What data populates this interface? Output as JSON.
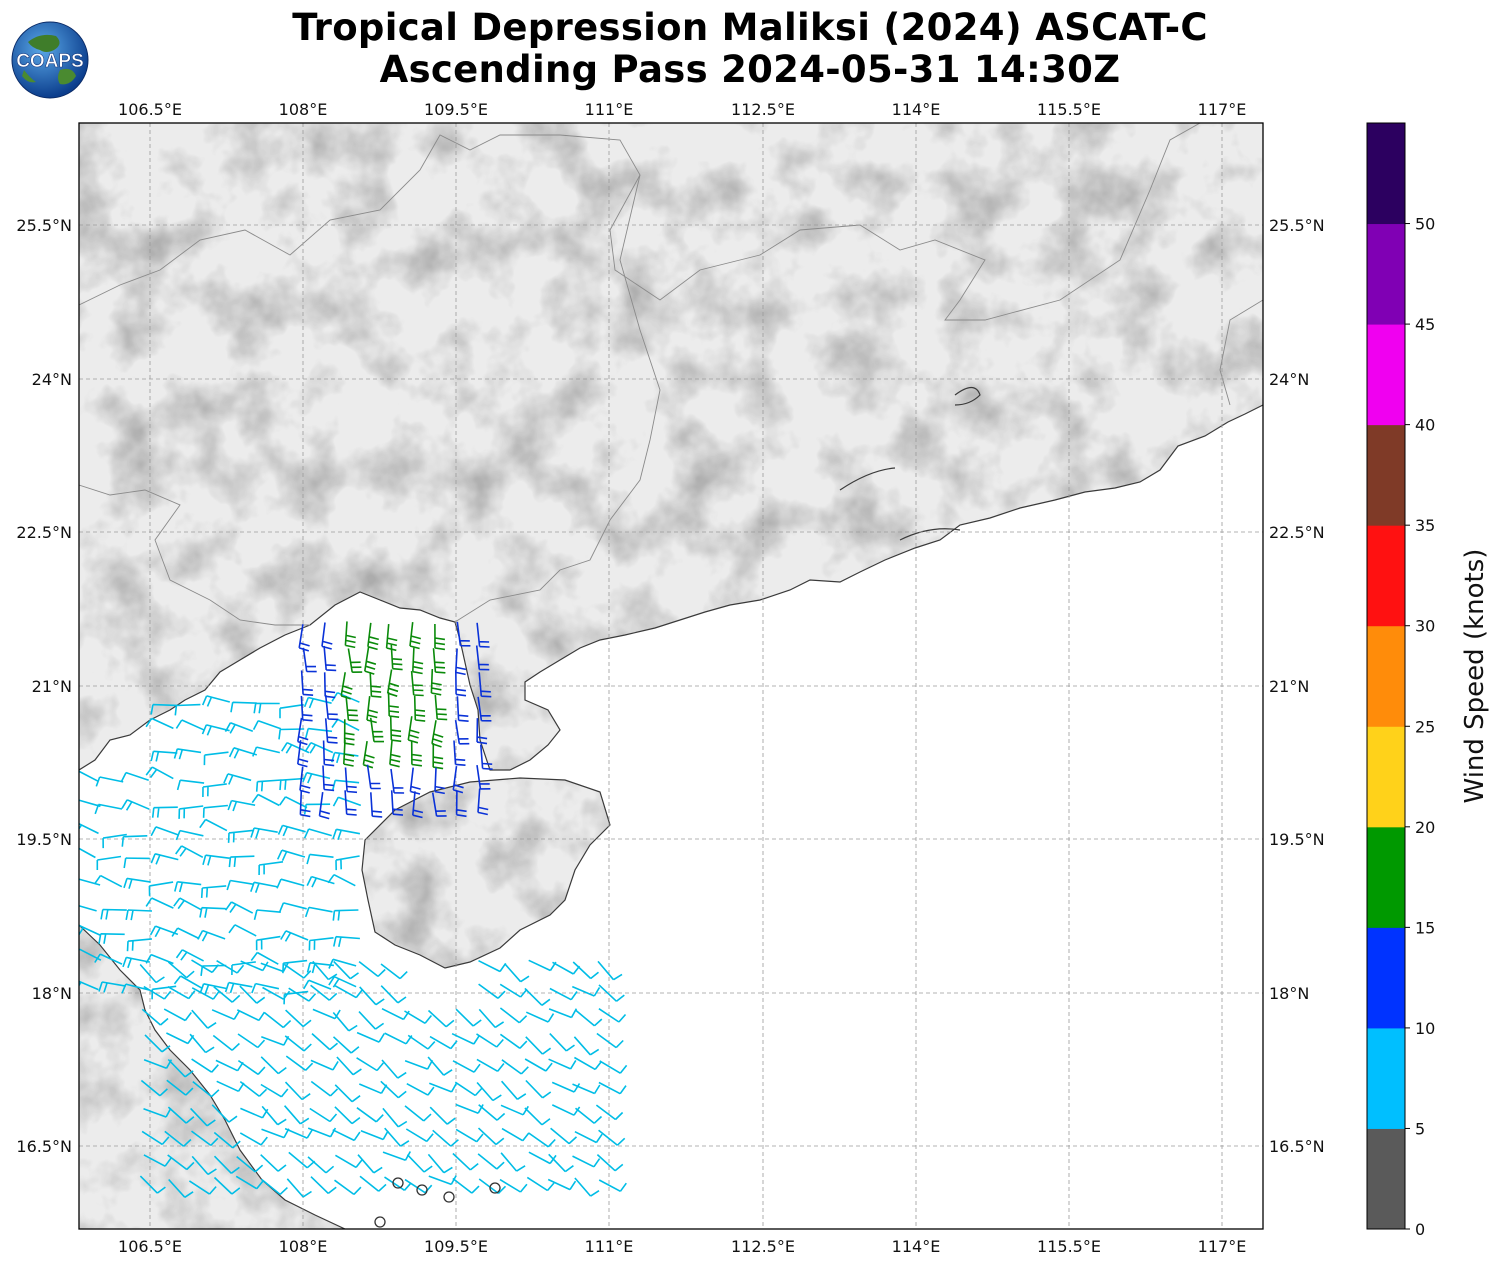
{
  "title_line1": "Tropical Depression Maliksi (2024) ASCAT-C",
  "title_line2": "Ascending Pass 2024-05-31 14:30Z",
  "logo_text": "COAPS",
  "lon_ticks": [
    "106.5°E",
    "108°E",
    "109.5°E",
    "111°E",
    "112.5°E",
    "114°E",
    "115.5°E",
    "117°E"
  ],
  "lat_ticks": [
    "25.5°N",
    "24°N",
    "22.5°N",
    "21°N",
    "19.5°N",
    "18°N",
    "16.5°N"
  ],
  "colorbar": {
    "label": "Wind Speed (knots)",
    "ticks": [
      "0",
      "5",
      "10",
      "15",
      "20",
      "25",
      "30",
      "35",
      "40",
      "45",
      "50"
    ],
    "colors": [
      "#5a5a5a",
      "#00bfff",
      "#0033ff",
      "#009900",
      "#ffd21a",
      "#ff8c0a",
      "#ff1111",
      "#7f3a27",
      "#f000f0",
      "#8000b4",
      "#2c0060"
    ]
  },
  "wind_colors": {
    "light": "#00bde6",
    "moderate": "#0a32d8",
    "strong": "#0a8a0a",
    "calm": "#333333"
  }
}
